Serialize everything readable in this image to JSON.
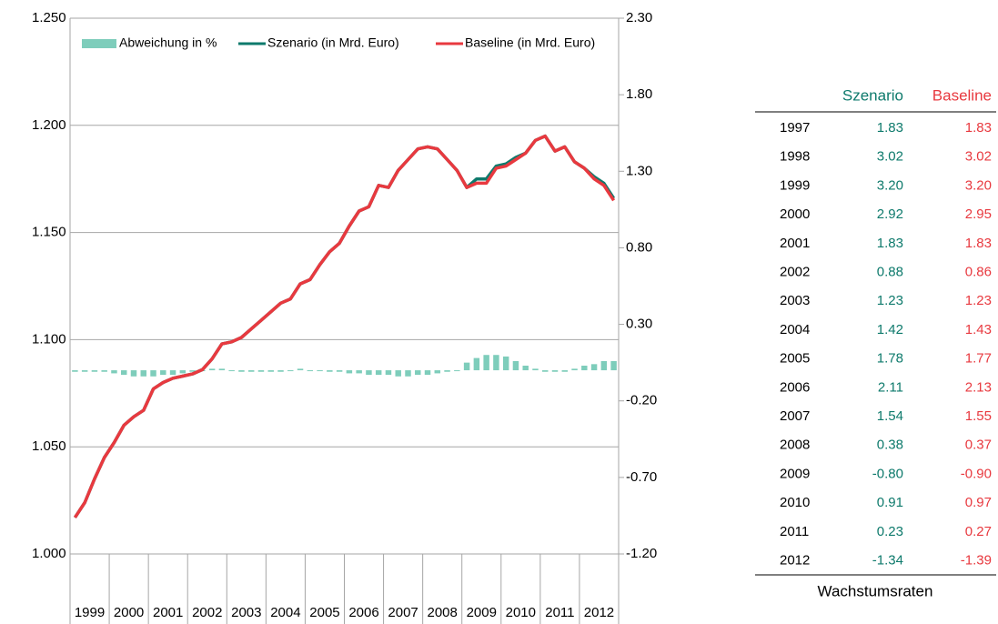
{
  "chart_data": {
    "type": "combo",
    "categories": [
      "1999",
      null,
      null,
      null,
      "2000",
      null,
      null,
      null,
      "2001",
      null,
      null,
      null,
      "2002",
      null,
      null,
      null,
      "2003",
      null,
      null,
      null,
      "2004",
      null,
      null,
      null,
      "2005",
      null,
      null,
      null,
      "2006",
      null,
      null,
      null,
      "2007",
      null,
      null,
      null,
      "2008",
      null,
      null,
      null,
      "2009",
      null,
      null,
      null,
      "2010",
      null,
      null,
      null,
      "2011",
      null,
      null,
      null,
      "2012",
      null,
      null,
      null
    ],
    "series": [
      {
        "name": "Abweichung in %",
        "kind": "bar",
        "axis": "y2",
        "color": "#7ecdbb",
        "values": [
          -0.01,
          -0.01,
          -0.01,
          -0.01,
          -0.02,
          -0.03,
          -0.04,
          -0.04,
          -0.04,
          -0.03,
          -0.03,
          -0.02,
          -0.01,
          0,
          0.01,
          0.01,
          0,
          -0.01,
          -0.01,
          -0.01,
          -0.01,
          -0.01,
          0,
          0.01,
          0,
          0,
          -0.01,
          -0.01,
          -0.02,
          -0.02,
          -0.03,
          -0.03,
          -0.03,
          -0.04,
          -0.04,
          -0.03,
          -0.03,
          -0.02,
          -0.01,
          0,
          0.05,
          0.08,
          0.1,
          0.1,
          0.09,
          0.06,
          0.03,
          0.01,
          -0.01,
          -0.01,
          -0.01,
          0.01,
          0.03,
          0.04,
          0.06,
          0.06
        ]
      },
      {
        "name": "Szenario (in Mrd. Euro)",
        "kind": "line",
        "color": "#0e7a6c",
        "values": [
          1.017,
          1.024,
          1.035,
          1.045,
          1.052,
          1.06,
          1.064,
          1.067,
          1.077,
          1.08,
          1.082,
          1.083,
          1.084,
          1.086,
          1.091,
          1.098,
          1.099,
          1.101,
          1.105,
          1.109,
          1.113,
          1.117,
          1.119,
          1.126,
          1.128,
          1.135,
          1.141,
          1.145,
          1.153,
          1.16,
          1.162,
          1.172,
          1.171,
          1.179,
          1.184,
          1.189,
          1.19,
          1.189,
          1.184,
          1.179,
          1.171,
          1.175,
          1.175,
          1.181,
          1.182,
          1.185,
          1.187,
          1.193,
          1.195,
          1.188,
          1.19,
          1.183,
          1.18,
          1.176,
          1.173,
          1.166
        ]
      },
      {
        "name": "Baseline (in Mrd. Euro)",
        "kind": "line",
        "color": "#e8393f",
        "values": [
          1.017,
          1.024,
          1.035,
          1.045,
          1.052,
          1.06,
          1.064,
          1.067,
          1.077,
          1.08,
          1.082,
          1.083,
          1.084,
          1.086,
          1.091,
          1.098,
          1.099,
          1.101,
          1.105,
          1.109,
          1.113,
          1.117,
          1.119,
          1.126,
          1.128,
          1.135,
          1.141,
          1.145,
          1.153,
          1.16,
          1.162,
          1.172,
          1.171,
          1.179,
          1.184,
          1.189,
          1.19,
          1.189,
          1.184,
          1.179,
          1.171,
          1.173,
          1.173,
          1.18,
          1.181,
          1.184,
          1.187,
          1.193,
          1.195,
          1.188,
          1.19,
          1.183,
          1.18,
          1.175,
          1.172,
          1.165
        ]
      }
    ],
    "ylim": [
      1,
      1.25
    ],
    "yticks": [
      {
        "value": 1,
        "label": "1.000"
      },
      {
        "value": 1.05,
        "label": "1.050"
      },
      {
        "value": 1.1,
        "label": "1.100"
      },
      {
        "value": 1.15,
        "label": "1.150"
      },
      {
        "value": 1.2,
        "label": "1.200"
      },
      {
        "value": 1.25,
        "label": "1.250"
      }
    ],
    "y2lim": [
      -1.2,
      2.3
    ],
    "y2ticks": [
      {
        "value": -1.2,
        "label": "-1.20"
      },
      {
        "value": -0.7,
        "label": "-0.70"
      },
      {
        "value": -0.2,
        "label": "-0.20"
      },
      {
        "value": 0.3,
        "label": "0.30"
      },
      {
        "value": 0.8,
        "label": "0.80"
      },
      {
        "value": 1.3,
        "label": "1.30"
      },
      {
        "value": 1.8,
        "label": "1.80"
      },
      {
        "value": 2.3,
        "label": "2.30"
      }
    ],
    "grid": true,
    "legend": "top-left"
  },
  "table": {
    "columns": [
      "Szenario",
      "Baseline"
    ],
    "caption": "Wachstumsraten",
    "rows": [
      [
        "1997",
        "1.83",
        "1.83"
      ],
      [
        "1998",
        "3.02",
        "3.02"
      ],
      [
        "1999",
        "3.20",
        "3.20"
      ],
      [
        "2000",
        "2.92",
        "2.95"
      ],
      [
        "2001",
        "1.83",
        "1.83"
      ],
      [
        "2002",
        "0.88",
        "0.86"
      ],
      [
        "2003",
        "1.23",
        "1.23"
      ],
      [
        "2004",
        "1.42",
        "1.43"
      ],
      [
        "2005",
        "1.78",
        "1.77"
      ],
      [
        "2006",
        "2.11",
        "2.13"
      ],
      [
        "2007",
        "1.54",
        "1.55"
      ],
      [
        "2008",
        "0.38",
        "0.37"
      ],
      [
        "2009",
        "-0.80",
        "-0.90"
      ],
      [
        "2010",
        "0.91",
        "0.97"
      ],
      [
        "2011",
        "0.23",
        "0.27"
      ],
      [
        "2012",
        "-1.34",
        "-1.39"
      ]
    ]
  }
}
